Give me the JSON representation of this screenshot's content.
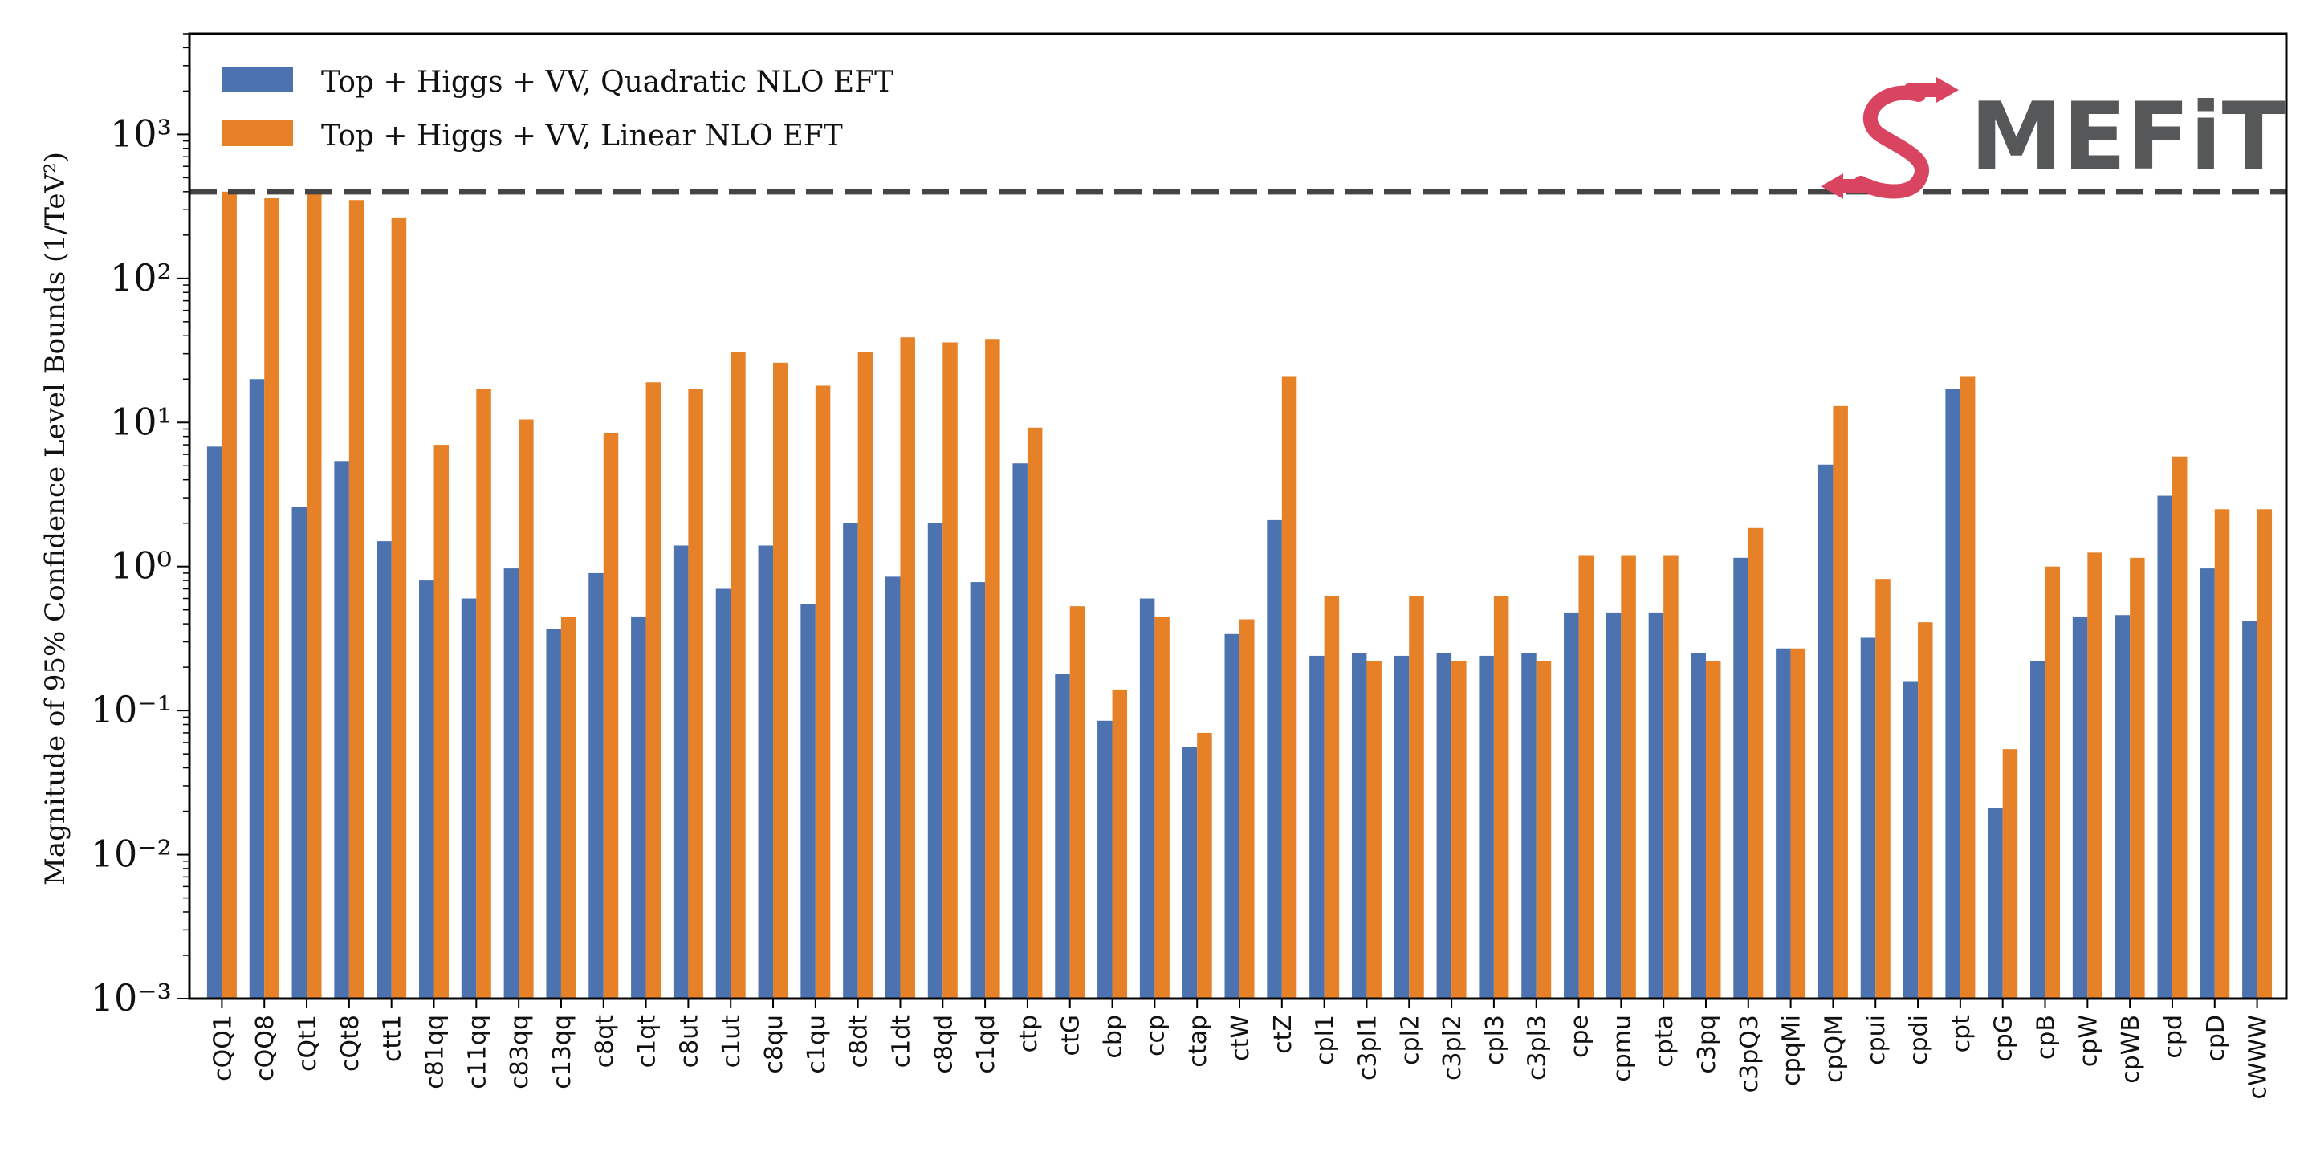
{
  "chart_data": {
    "type": "bar",
    "yscale": "log",
    "ylim": [
      0.001,
      5000
    ],
    "ylabel": "Magnitude of 95% Confidence Level Bounds (1/TeV²)",
    "ytick_labels": [
      "10⁻³",
      "10⁻²",
      "10⁻¹",
      "10⁰",
      "10¹",
      "10²",
      "10³"
    ],
    "reference_line": {
      "value": 400,
      "style": "dashed",
      "color": "#444444"
    },
    "legend_placement": "upper-left",
    "logo": {
      "text": "MEFiT",
      "mark": "S"
    },
    "categories": [
      "cQQ1",
      "cQQ8",
      "cQt1",
      "cQt8",
      "ctt1",
      "c81qq",
      "c11qq",
      "c83qq",
      "c13qq",
      "c8qt",
      "c1qt",
      "c8ut",
      "c1ut",
      "c8qu",
      "c1qu",
      "c8dt",
      "c1dt",
      "c8qd",
      "c1qd",
      "ctp",
      "ctG",
      "cbp",
      "ccp",
      "ctap",
      "ctW",
      "ctZ",
      "cpl1",
      "c3pl1",
      "cpl2",
      "c3pl2",
      "cpl3",
      "c3pl3",
      "cpe",
      "cpmu",
      "cpta",
      "c3pq",
      "c3pQ3",
      "cpqMi",
      "cpQM",
      "cpui",
      "cpdi",
      "cpt",
      "cpG",
      "cpB",
      "cpW",
      "cpWB",
      "cpd",
      "cpD",
      "cWWW"
    ],
    "series": [
      {
        "name": "Top + Higgs + VV,  Quadratic NLO EFT",
        "color": "#4c72b0",
        "values": [
          6.8,
          20,
          2.6,
          5.4,
          1.5,
          0.8,
          0.6,
          0.97,
          0.37,
          0.9,
          0.45,
          1.4,
          0.7,
          1.4,
          0.55,
          2.0,
          0.85,
          2.0,
          0.78,
          5.2,
          0.18,
          0.085,
          0.6,
          0.056,
          0.34,
          2.1,
          0.24,
          0.25,
          0.24,
          0.25,
          0.24,
          0.25,
          0.48,
          0.48,
          0.48,
          0.25,
          1.15,
          0.27,
          5.1,
          0.32,
          0.16,
          17,
          0.021,
          0.22,
          0.45,
          0.46,
          3.1,
          0.97,
          0.42
        ]
      },
      {
        "name": "Top + Higgs + VV,  Linear NLO EFT",
        "color": "#e68127",
        "values": [
          400,
          360,
          390,
          350,
          265,
          7.0,
          17,
          10.5,
          0.45,
          8.5,
          19,
          17,
          31,
          26,
          18,
          31,
          39,
          36,
          38,
          9.2,
          0.53,
          0.14,
          0.45,
          0.07,
          0.43,
          21,
          0.62,
          0.22,
          0.62,
          0.22,
          0.62,
          0.22,
          1.2,
          1.2,
          1.2,
          0.22,
          1.85,
          0.27,
          13,
          0.82,
          0.41,
          21,
          0.054,
          1.0,
          1.25,
          1.15,
          5.8,
          2.5,
          2.5
        ]
      }
    ]
  }
}
